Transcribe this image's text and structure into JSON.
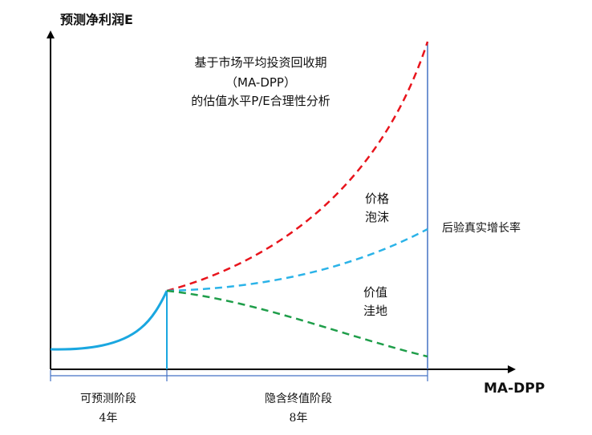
{
  "axes": {
    "y_label": "预测净利润E",
    "x_label": "MA-DPP"
  },
  "title": {
    "line1": "基于市场平均投资回收期",
    "line2": "（MA-DPP）",
    "line3": "的估值水平P/E合理性分析"
  },
  "annotations": {
    "bubble_1": "价格",
    "bubble_2": "泡沫",
    "hollow_1": "价值",
    "hollow_2": "洼地",
    "real_growth": "后验真实增长率"
  },
  "phases": {
    "forecast_name": "可预测阶段",
    "forecast_years": "4年",
    "terminal_name": "隐含终值阶段",
    "terminal_years": "8年"
  },
  "colors": {
    "forecast_curve": "#1aa7e0",
    "bubble_curve": "#e8141c",
    "real_curve": "#2bb3e8",
    "hollow_curve": "#1f9e4a",
    "divider": "#4472c4",
    "axis": "#000000"
  }
}
